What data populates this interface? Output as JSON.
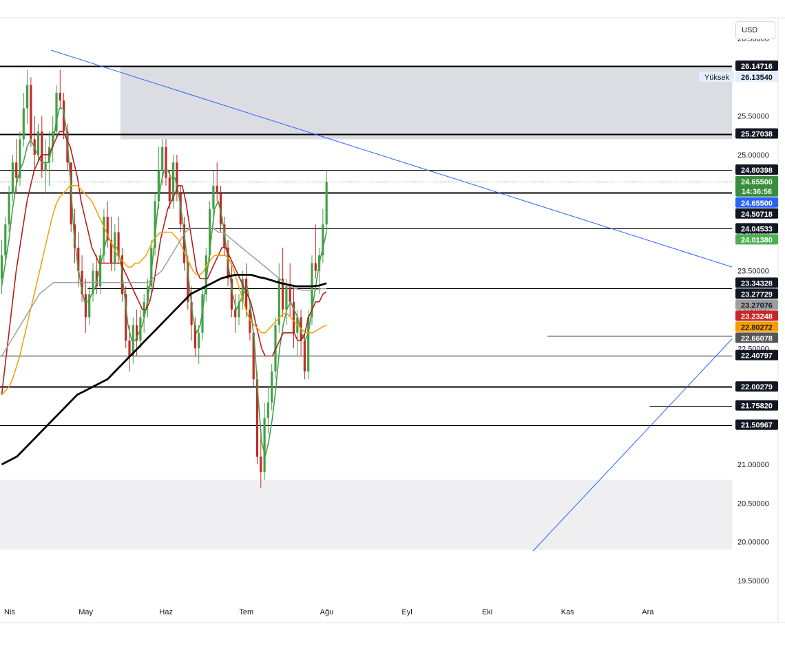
{
  "currency_button": {
    "label": "USD"
  },
  "chart_data": {
    "type": "candlestick",
    "ylim": [
      19.25,
      26.75
    ],
    "y_ticks": [
      26.5,
      26.0,
      25.5,
      25.0,
      24.5,
      24.0,
      23.5,
      23.0,
      22.5,
      22.0,
      21.5,
      21.0,
      20.5,
      20.0,
      19.5
    ],
    "y_tick_labels": [
      "26.50000",
      "26.00000",
      "25.50000",
      "25.00000",
      "24.50000",
      "24.00000",
      "23.50000",
      "23.00000",
      "22.50000",
      "22.00000",
      "21.50000",
      "21.00000",
      "20.50000",
      "20.00000",
      "19.50000"
    ],
    "x_ticks": [
      "Nis",
      "May",
      "Haz",
      "Tem",
      "Ağu",
      "Eyl",
      "Eki",
      "Kas",
      "Ara"
    ],
    "x_tick_positions": [
      0,
      22,
      44,
      66,
      88,
      110,
      132,
      154,
      176
    ],
    "candles": [
      [
        23.4,
        23.9,
        23.2,
        23.7
      ],
      [
        23.7,
        24.2,
        23.6,
        24.1
      ],
      [
        24.1,
        24.6,
        24.0,
        24.5
      ],
      [
        24.5,
        25.0,
        24.4,
        24.9
      ],
      [
        24.9,
        25.2,
        24.5,
        24.7
      ],
      [
        24.7,
        25.3,
        24.6,
        25.2
      ],
      [
        25.2,
        25.8,
        25.1,
        25.6
      ],
      [
        25.6,
        26.1,
        25.4,
        25.9
      ],
      [
        25.9,
        26.0,
        25.1,
        25.2
      ],
      [
        25.2,
        25.5,
        24.8,
        25.0
      ],
      [
        25.0,
        25.4,
        24.9,
        25.3
      ],
      [
        25.3,
        25.5,
        24.7,
        24.8
      ],
      [
        24.8,
        25.2,
        24.5,
        24.9
      ],
      [
        24.9,
        25.3,
        24.6,
        25.1
      ],
      [
        25.1,
        25.5,
        24.9,
        25.3
      ],
      [
        25.3,
        25.9,
        25.2,
        25.8
      ],
      [
        25.8,
        26.1,
        25.6,
        25.7
      ],
      [
        25.7,
        25.8,
        25.2,
        25.3
      ],
      [
        25.3,
        25.4,
        24.8,
        24.9
      ],
      [
        24.9,
        24.9,
        24.0,
        24.1
      ],
      [
        24.1,
        24.3,
        23.6,
        23.8
      ],
      [
        23.8,
        24.0,
        23.3,
        23.5
      ],
      [
        23.5,
        23.7,
        23.1,
        23.2
      ],
      [
        23.2,
        23.4,
        22.7,
        22.9
      ],
      [
        22.9,
        23.3,
        22.8,
        23.2
      ],
      [
        23.2,
        23.6,
        23.1,
        23.5
      ],
      [
        23.5,
        23.7,
        23.2,
        23.3
      ],
      [
        23.3,
        23.8,
        23.2,
        23.7
      ],
      [
        23.7,
        24.3,
        23.6,
        24.2
      ],
      [
        24.2,
        24.4,
        23.8,
        23.9
      ],
      [
        23.9,
        24.2,
        23.5,
        23.6
      ],
      [
        23.6,
        24.1,
        23.5,
        24.0
      ],
      [
        24.0,
        24.2,
        23.6,
        23.7
      ],
      [
        23.7,
        23.8,
        23.1,
        23.2
      ],
      [
        23.2,
        23.3,
        22.5,
        22.6
      ],
      [
        22.6,
        22.8,
        22.2,
        22.4
      ],
      [
        22.4,
        22.9,
        22.3,
        22.8
      ],
      [
        22.8,
        23.0,
        22.4,
        22.6
      ],
      [
        22.6,
        23.0,
        22.5,
        22.9
      ],
      [
        22.9,
        23.2,
        22.7,
        23.1
      ],
      [
        23.1,
        23.4,
        22.9,
        23.3
      ],
      [
        23.3,
        23.9,
        23.2,
        23.8
      ],
      [
        23.8,
        24.5,
        23.7,
        24.4
      ],
      [
        24.4,
        25.1,
        24.3,
        24.8
      ],
      [
        24.8,
        25.2,
        24.6,
        25.1
      ],
      [
        25.1,
        25.2,
        24.6,
        24.7
      ],
      [
        24.7,
        24.8,
        24.3,
        24.4
      ],
      [
        24.4,
        25.0,
        24.3,
        24.9
      ],
      [
        24.9,
        25.0,
        24.4,
        24.5
      ],
      [
        24.5,
        24.6,
        24.0,
        24.1
      ],
      [
        24.1,
        24.2,
        23.5,
        23.6
      ],
      [
        23.6,
        23.7,
        23.0,
        23.1
      ],
      [
        23.1,
        23.3,
        22.6,
        22.8
      ],
      [
        22.8,
        22.9,
        22.4,
        22.5
      ],
      [
        22.5,
        22.8,
        22.3,
        22.7
      ],
      [
        22.7,
        23.3,
        22.6,
        23.2
      ],
      [
        23.2,
        23.8,
        23.1,
        23.7
      ],
      [
        23.7,
        24.4,
        23.6,
        24.3
      ],
      [
        24.3,
        24.8,
        24.1,
        24.6
      ],
      [
        24.6,
        24.9,
        24.4,
        24.5
      ],
      [
        24.5,
        24.6,
        24.0,
        24.1
      ],
      [
        24.1,
        24.2,
        23.7,
        23.8
      ],
      [
        23.8,
        23.9,
        23.3,
        23.4
      ],
      [
        23.4,
        23.6,
        22.9,
        23.0
      ],
      [
        23.0,
        23.2,
        22.7,
        22.9
      ],
      [
        22.9,
        23.2,
        22.8,
        23.1
      ],
      [
        23.1,
        23.5,
        23.0,
        23.4
      ],
      [
        23.4,
        23.6,
        22.9,
        23.0
      ],
      [
        23.0,
        23.1,
        22.6,
        22.7
      ],
      [
        22.7,
        22.7,
        22.0,
        22.1
      ],
      [
        22.1,
        22.2,
        21.0,
        21.1
      ],
      [
        21.1,
        21.4,
        20.7,
        20.9
      ],
      [
        20.9,
        21.8,
        20.8,
        21.6
      ],
      [
        21.6,
        22.0,
        21.4,
        21.8
      ],
      [
        21.8,
        22.3,
        21.7,
        22.2
      ],
      [
        22.2,
        22.9,
        22.1,
        22.8
      ],
      [
        22.8,
        23.6,
        22.7,
        23.4
      ],
      [
        23.4,
        23.8,
        22.9,
        23.0
      ],
      [
        23.0,
        23.4,
        22.8,
        23.3
      ],
      [
        23.3,
        23.6,
        22.9,
        23.1
      ],
      [
        23.1,
        23.3,
        22.5,
        22.7
      ],
      [
        22.7,
        23.0,
        22.4,
        22.9
      ],
      [
        22.9,
        23.0,
        22.4,
        22.6
      ],
      [
        22.6,
        22.7,
        22.1,
        22.2
      ],
      [
        22.2,
        23.0,
        22.1,
        22.9
      ],
      [
        22.9,
        23.7,
        22.8,
        23.6
      ],
      [
        23.6,
        24.1,
        23.4,
        23.5
      ],
      [
        23.5,
        23.8,
        23.2,
        23.7
      ],
      [
        23.7,
        24.3,
        23.6,
        24.1
      ],
      [
        24.1,
        24.8,
        24.0,
        24.65
      ]
    ],
    "lines": [
      {
        "name": "ma-green",
        "color": "#43a047",
        "width": 1.6,
        "values": [
          23.3,
          23.6,
          23.9,
          24.3,
          24.6,
          24.8,
          24.9,
          25.1,
          25.2,
          25.1,
          25.0,
          24.9,
          24.9,
          24.9,
          25.1,
          25.4,
          25.6,
          25.6,
          25.3,
          24.7,
          24.0,
          23.6,
          23.3,
          23.1,
          23.1,
          23.2,
          23.3,
          23.5,
          23.7,
          23.9,
          23.9,
          23.8,
          23.8,
          23.6,
          23.2,
          22.8,
          22.6,
          22.6,
          22.7,
          22.8,
          23.0,
          23.3,
          23.7,
          24.2,
          24.6,
          24.8,
          24.8,
          24.7,
          24.7,
          24.5,
          24.2,
          23.8,
          23.3,
          22.9,
          22.7,
          22.8,
          23.1,
          23.5,
          23.9,
          24.3,
          24.4,
          24.2,
          23.9,
          23.5,
          23.2,
          23.0,
          23.1,
          23.2,
          23.3,
          23.0,
          22.6,
          21.9,
          21.3,
          21.1,
          21.3,
          21.6,
          22.0,
          22.5,
          22.8,
          23.0,
          23.1,
          23.0,
          22.9,
          22.7,
          22.6,
          22.7,
          23.0,
          23.3,
          23.6,
          23.8,
          24.0
        ]
      },
      {
        "name": "ma-red",
        "color": "#b71c1c",
        "width": 1.6,
        "values": [
          21.9,
          22.3,
          22.7,
          23.1,
          23.5,
          23.8,
          24.1,
          24.4,
          24.6,
          24.8,
          24.9,
          25.0,
          25.0,
          25.0,
          25.1,
          25.2,
          25.3,
          25.3,
          25.2,
          25.1,
          24.9,
          24.7,
          24.4,
          24.2,
          24.0,
          23.8,
          23.7,
          23.6,
          23.6,
          23.6,
          23.6,
          23.6,
          23.6,
          23.6,
          23.5,
          23.4,
          23.3,
          23.2,
          23.1,
          23.0,
          23.0,
          23.1,
          23.3,
          23.6,
          23.9,
          24.1,
          24.3,
          24.4,
          24.5,
          24.6,
          24.6,
          24.4,
          24.1,
          23.8,
          23.5,
          23.4,
          23.4,
          23.4,
          23.5,
          23.6,
          23.7,
          23.8,
          23.8,
          23.7,
          23.6,
          23.5,
          23.4,
          23.3,
          23.2,
          23.1,
          22.9,
          22.7,
          22.5,
          22.4,
          22.4,
          22.4,
          22.5,
          22.6,
          22.7,
          22.7,
          22.7,
          22.7,
          22.6,
          22.6,
          22.7,
          22.9,
          23.0,
          23.1,
          23.1,
          23.2,
          23.23
        ]
      },
      {
        "name": "ma-orange",
        "color": "#f59d00",
        "width": 1.5,
        "values": [
          21.9,
          21.95,
          22.0,
          22.1,
          22.25,
          22.4,
          22.6,
          22.8,
          23.0,
          23.2,
          23.4,
          23.6,
          23.8,
          24.0,
          24.2,
          24.35,
          24.45,
          24.5,
          24.55,
          24.6,
          24.6,
          24.6,
          24.55,
          24.5,
          24.45,
          24.4,
          24.3,
          24.2,
          24.1,
          24.0,
          23.9,
          23.8,
          23.7,
          23.65,
          23.6,
          23.55,
          23.55,
          23.6,
          23.6,
          23.65,
          23.7,
          23.8,
          23.9,
          23.95,
          24.0,
          24.0,
          24.0,
          24.0,
          23.95,
          23.9,
          23.8,
          23.7,
          23.6,
          23.5,
          23.45,
          23.45,
          23.5,
          23.6,
          23.65,
          23.7,
          23.7,
          23.7,
          23.7,
          23.65,
          23.55,
          23.4,
          23.25,
          23.1,
          22.95,
          22.85,
          22.8,
          22.75,
          22.7,
          22.7,
          22.75,
          22.8,
          22.85,
          22.9,
          22.95,
          22.95,
          22.9,
          22.85,
          22.8,
          22.75,
          22.7,
          22.7,
          22.7,
          22.72,
          22.75,
          22.78,
          22.8
        ]
      },
      {
        "name": "ma-gray",
        "color": "#9e9e9e",
        "width": 1.5,
        "values": [
          22.4,
          22.5,
          22.6,
          22.7,
          22.8,
          22.9,
          23.0,
          23.1,
          23.2,
          23.25,
          23.3,
          23.35,
          23.35,
          23.35,
          23.35,
          23.35,
          23.35,
          23.35,
          23.35,
          23.35,
          23.35,
          23.35,
          23.35,
          23.35,
          23.35,
          23.35,
          23.35,
          23.35,
          23.35,
          23.35,
          23.35,
          23.35,
          23.4,
          23.45,
          23.5,
          23.6,
          23.7,
          23.8,
          23.9,
          24.0,
          24.05,
          24.05,
          24.05,
          24.05,
          24.05,
          24.05,
          24.0,
          24.0,
          23.95,
          23.9,
          23.85,
          23.8,
          23.75,
          23.7,
          23.65,
          23.6,
          23.55,
          23.5,
          23.45,
          23.4,
          23.35,
          23.3,
          23.28,
          23.26,
          23.25,
          23.25,
          23.25,
          23.26,
          23.27,
          23.27
        ]
      },
      {
        "name": "ma-black",
        "color": "#000000",
        "width": 2.8,
        "values": [
          21.0,
          21.05,
          21.1,
          21.2,
          21.3,
          21.4,
          21.5,
          21.6,
          21.7,
          21.8,
          21.9,
          21.95,
          22.0,
          22.05,
          22.1,
          22.2,
          22.3,
          22.4,
          22.5,
          22.6,
          22.7,
          22.8,
          22.9,
          23.0,
          23.1,
          23.2,
          23.25,
          23.3,
          23.35,
          23.4,
          23.43,
          23.45,
          23.45,
          23.45,
          23.42,
          23.4,
          23.37,
          23.34,
          23.32,
          23.3,
          23.3,
          23.3,
          23.31,
          23.34
        ]
      }
    ],
    "price_labels": [
      {
        "value": 26.14716,
        "text": "26.14716",
        "bg": "#131722",
        "fg": "#ffffff"
      },
      {
        "value": 26.1354,
        "text": "26.13540",
        "bg": "#e3eefc",
        "fg": "#131722",
        "tag": "Yüksek"
      },
      {
        "value": 25.27038,
        "text": "25.27038",
        "bg": "#131722",
        "fg": "#ffffff"
      },
      {
        "value": 24.80398,
        "text": "24.80398",
        "bg": "#131722",
        "fg": "#ffffff"
      },
      {
        "value": 24.655,
        "text": "24.65500",
        "bg": "#388e3c",
        "fg": "#ffffff",
        "subtext": "14:36:56"
      },
      {
        "value": 24.655,
        "text": "24.65500",
        "bg": "#2962ff",
        "fg": "#ffffff"
      },
      {
        "value": 24.50718,
        "text": "24.50718",
        "bg": "#131722",
        "fg": "#ffffff"
      },
      {
        "value": 24.04533,
        "text": "24.04533",
        "bg": "#131722",
        "fg": "#ffffff"
      },
      {
        "value": 24.0138,
        "text": "24.01380",
        "bg": "#4caf50",
        "fg": "#ffffff"
      },
      {
        "value": 23.34328,
        "text": "23.34328",
        "bg": "#131722",
        "fg": "#ffffff"
      },
      {
        "value": 23.27729,
        "text": "23.27729",
        "bg": "#131722",
        "fg": "#ffffff"
      },
      {
        "value": 23.27076,
        "text": "23.27076",
        "bg": "#9e9e9e",
        "fg": "#131722"
      },
      {
        "value": 23.23248,
        "text": "23.23248",
        "bg": "#c62828",
        "fg": "#ffffff"
      },
      {
        "value": 22.80272,
        "text": "22.80272",
        "bg": "#f59d00",
        "fg": "#131722"
      },
      {
        "value": 22.66078,
        "text": "22.66078",
        "bg": "#555555",
        "fg": "#ffffff"
      },
      {
        "value": 22.40797,
        "text": "22.40797",
        "bg": "#131722",
        "fg": "#ffffff"
      },
      {
        "value": 22.00279,
        "text": "22.00279",
        "bg": "#131722",
        "fg": "#ffffff"
      },
      {
        "value": 21.7582,
        "text": "21.75820",
        "bg": "#131722",
        "fg": "#ffffff"
      },
      {
        "value": 21.50967,
        "text": "21.50967",
        "bg": "#131722",
        "fg": "#ffffff"
      }
    ],
    "hlines": [
      {
        "value": 26.14716,
        "x_from": -1,
        "width": 2
      },
      {
        "value": 25.27038,
        "x_from": -1,
        "width": 2
      },
      {
        "value": 24.80398,
        "x_from": -1,
        "width": 1
      },
      {
        "value": 24.50718,
        "x_from": -1,
        "width": 2
      },
      {
        "value": 24.04533,
        "x_from": 46,
        "width": 1
      },
      {
        "value": 23.27729,
        "x_from": 24,
        "width": 1
      },
      {
        "value": 22.66078,
        "x_from": 150,
        "width": 1
      },
      {
        "value": 22.40797,
        "x_from": -1,
        "width": 1
      },
      {
        "value": 22.00279,
        "x_from": -1,
        "width": 2
      },
      {
        "value": 21.7582,
        "x_from": 178,
        "width": 1
      },
      {
        "value": 21.50967,
        "x_from": -1,
        "width": 1
      }
    ],
    "current_price": 24.655,
    "zones": [
      {
        "x_from": 33,
        "x_to": 240,
        "y_from": 25.2,
        "y_to": 26.14,
        "color": "#dcdde2"
      },
      {
        "x_from": -1,
        "x_to": 240,
        "y_from": 19.9,
        "y_to": 20.8,
        "color": "#efeff2"
      },
      {
        "x_from": 205,
        "x_to": 240,
        "y_from": 21.9,
        "y_to": 22.38,
        "color": "#efeff2"
      }
    ],
    "trendlines": [
      {
        "from": [
          14,
          26.35
        ],
        "to": [
          240,
          23.55
        ]
      },
      {
        "from": [
          146,
          19.88
        ],
        "to": [
          240,
          22.62
        ]
      }
    ]
  }
}
